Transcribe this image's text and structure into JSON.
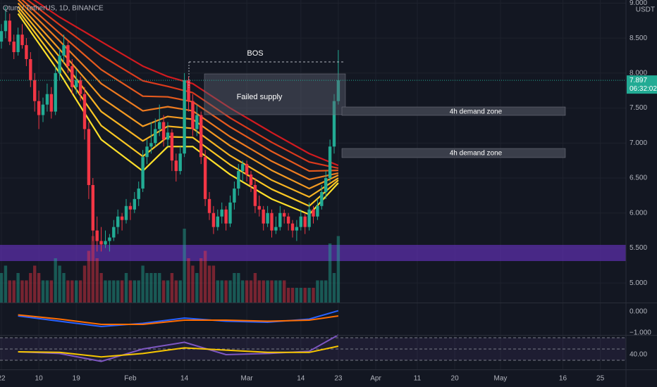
{
  "header": {
    "symbol": "Qtum / TetherUS, 1D, BINANCE",
    "currency": "USDT"
  },
  "annotations": {
    "bos": "BOS",
    "failed_supply": "Failed supply",
    "demand_zone_1": "4h demand zone",
    "demand_zone_2": "4h demand zone"
  },
  "chart_data": [
    {
      "type": "candlestick",
      "up_color": "#22ab94",
      "down_color": "#f23645",
      "xlim": [
        -0.34,
        150.17
      ],
      "xticks": [
        {
          "value": 0,
          "label": "22"
        },
        {
          "value": 9,
          "label": "10"
        },
        {
          "value": 18,
          "label": "19"
        },
        {
          "value": 31,
          "label": "Feb"
        },
        {
          "value": 44,
          "label": "14"
        },
        {
          "value": 59,
          "label": "Mar"
        },
        {
          "value": 72,
          "label": "14"
        },
        {
          "value": 81,
          "label": "23"
        },
        {
          "value": 90,
          "label": "Apr"
        },
        {
          "value": 100,
          "label": "11"
        },
        {
          "value": 109,
          "label": "20"
        },
        {
          "value": 120,
          "label": "May"
        },
        {
          "value": 135,
          "label": "16"
        },
        {
          "value": 144,
          "label": "25"
        }
      ],
      "ylim": [
        4.72,
        9.045
      ],
      "yticks": [
        {
          "value": 9,
          "label": "9.000"
        },
        {
          "value": 8.5,
          "label": "8.500"
        },
        {
          "value": 8,
          "label": "8.000"
        },
        {
          "value": 7.5,
          "label": "7.500"
        },
        {
          "value": 7,
          "label": "7.000"
        },
        {
          "value": 6.5,
          "label": "6.500"
        },
        {
          "value": 6,
          "label": "6.000"
        },
        {
          "value": 5.5,
          "label": "5.500"
        },
        {
          "value": 5,
          "label": "5.000"
        }
      ],
      "grid": true,
      "open": [
        8.45,
        8.6,
        8.75,
        8.45,
        8.3,
        8.55,
        8.4,
        8.2,
        7.9,
        7.6,
        7.4,
        7.55,
        7.7,
        7.45,
        8.0,
        8.25,
        8.4,
        8.1,
        7.8,
        7.9,
        7.7,
        7.2,
        6.4,
        5.75,
        5.6,
        5.55,
        5.6,
        5.65,
        5.8,
        5.95,
        5.9,
        6.1,
        6.05,
        6.2,
        6.35,
        6.8,
        6.95,
        7.0,
        7.2,
        7.3,
        7.05,
        7.15,
        6.75,
        6.6,
        6.85,
        7.9,
        7.6,
        7.2,
        7.4,
        6.8,
        6.2,
        6.0,
        5.8,
        5.95,
        6.05,
        5.85,
        6.15,
        6.35,
        6.6,
        6.7,
        6.55,
        6.4,
        6.1,
        6.05,
        5.85,
        6.0,
        5.75,
        5.8,
        6.0,
        5.95,
        5.85,
        5.75,
        5.8,
        5.95,
        5.8,
        6.05,
        5.95,
        6.1,
        6.3,
        6.5,
        6.95,
        7.6
      ],
      "high": [
        8.7,
        8.95,
        8.85,
        8.55,
        8.65,
        8.7,
        8.5,
        8.3,
        8.0,
        7.75,
        7.65,
        7.85,
        7.8,
        8.1,
        8.35,
        8.55,
        8.45,
        8.2,
        8.05,
        7.95,
        7.8,
        7.3,
        6.5,
        5.95,
        5.8,
        5.75,
        5.7,
        5.9,
        6.05,
        6.0,
        6.2,
        6.15,
        6.3,
        6.45,
        6.9,
        7.05,
        7.3,
        7.35,
        7.55,
        7.4,
        7.3,
        7.2,
        6.85,
        6.95,
        8.0,
        7.95,
        7.7,
        7.55,
        7.45,
        6.9,
        6.3,
        6.1,
        6.05,
        6.15,
        6.1,
        6.25,
        6.45,
        6.7,
        6.75,
        6.75,
        6.6,
        6.5,
        6.25,
        6.1,
        6.1,
        6.05,
        5.95,
        6.1,
        6.05,
        6.0,
        5.9,
        5.9,
        6.05,
        6.0,
        6.15,
        6.1,
        6.2,
        6.4,
        6.6,
        7.05,
        7.7,
        8.33
      ],
      "low": [
        8.35,
        8.5,
        8.4,
        8.2,
        8.25,
        8.35,
        8.1,
        7.8,
        7.45,
        7.2,
        7.3,
        7.45,
        7.35,
        7.4,
        7.9,
        8.15,
        8.0,
        7.7,
        7.7,
        7.6,
        7.05,
        6.2,
        5.6,
        5.45,
        5.45,
        5.5,
        5.45,
        5.6,
        5.7,
        5.75,
        5.85,
        5.9,
        6.0,
        6.1,
        6.3,
        6.7,
        6.85,
        6.95,
        7.1,
        6.95,
        6.95,
        6.6,
        6.45,
        6.55,
        6.8,
        7.45,
        7.1,
        7.1,
        6.7,
        6.1,
        5.9,
        5.7,
        5.75,
        5.85,
        5.75,
        5.8,
        6.05,
        6.25,
        6.45,
        6.45,
        6.3,
        6.0,
        5.95,
        5.75,
        5.8,
        5.65,
        5.7,
        5.75,
        5.85,
        5.75,
        5.65,
        5.6,
        5.75,
        5.7,
        5.75,
        5.85,
        5.9,
        6.05,
        6.2,
        6.45,
        6.85,
        7.55
      ],
      "close": [
        8.6,
        8.75,
        8.45,
        8.3,
        8.55,
        8.4,
        8.2,
        7.9,
        7.6,
        7.4,
        7.55,
        7.7,
        7.45,
        8.0,
        8.25,
        8.4,
        8.1,
        7.8,
        7.9,
        7.7,
        7.2,
        6.4,
        5.75,
        5.6,
        5.55,
        5.6,
        5.65,
        5.8,
        5.95,
        5.9,
        6.1,
        6.05,
        6.2,
        6.35,
        6.8,
        6.95,
        7.0,
        7.2,
        7.3,
        7.05,
        7.15,
        6.75,
        6.6,
        6.85,
        7.9,
        7.6,
        7.2,
        7.4,
        6.8,
        6.2,
        6.0,
        5.8,
        5.95,
        6.05,
        5.85,
        6.15,
        6.35,
        6.6,
        6.7,
        6.55,
        6.4,
        6.1,
        6.05,
        5.85,
        6.0,
        5.75,
        5.8,
        6.0,
        5.95,
        5.85,
        5.75,
        5.8,
        5.95,
        5.8,
        6.05,
        5.95,
        6.1,
        6.3,
        6.5,
        6.95,
        7.6,
        7.897
      ],
      "volume": [
        4,
        5,
        3,
        3,
        4,
        3,
        3,
        4,
        5,
        4,
        3,
        3,
        3,
        6,
        5,
        4,
        3,
        3,
        3,
        3,
        5,
        7,
        9,
        6,
        4,
        3,
        3,
        3,
        3,
        3,
        4,
        3,
        3,
        3,
        5,
        4,
        4,
        4,
        4,
        3,
        3,
        4,
        3,
        3,
        10,
        6,
        5,
        4,
        6,
        7,
        5,
        5,
        3,
        3,
        3,
        3,
        4,
        4,
        3,
        3,
        3,
        4,
        3,
        3,
        3,
        3,
        3,
        3,
        3,
        2,
        2,
        2,
        2,
        2,
        2,
        2,
        3,
        3,
        3,
        8,
        4,
        9
      ],
      "ribbon": {
        "x": [
          4,
          14,
          24,
          34,
          40,
          46,
          55,
          65,
          74,
          81
        ],
        "series": [
          {
            "color": "#d11a1f",
            "values": [
              9.2,
              8.8,
              8.45,
              8.1,
              7.95,
              7.85,
              7.5,
              7.15,
              6.85,
              6.68
            ]
          },
          {
            "color": "#dc3a1c",
            "values": [
              9.15,
              8.69,
              8.25,
              7.89,
              7.81,
              7.72,
              7.36,
              7.01,
              6.73,
              6.64
            ]
          },
          {
            "color": "#e55a1e",
            "values": [
              9.1,
              8.57,
              8.05,
              7.67,
              7.66,
              7.59,
              7.23,
              6.88,
              6.6,
              6.61
            ]
          },
          {
            "color": "#ed7a20",
            "values": [
              9.05,
              8.46,
              7.85,
              7.46,
              7.52,
              7.46,
              7.09,
              6.74,
              6.48,
              6.57
            ]
          },
          {
            "color": "#f39a22",
            "values": [
              9.0,
              8.34,
              7.65,
              7.24,
              7.38,
              7.34,
              6.96,
              6.61,
              6.35,
              6.54
            ]
          },
          {
            "color": "#f7b423",
            "values": [
              8.95,
              8.23,
              7.45,
              7.03,
              7.24,
              7.21,
              6.82,
              6.47,
              6.23,
              6.5
            ]
          },
          {
            "color": "#fbc824",
            "values": [
              8.9,
              8.11,
              7.25,
              6.81,
              7.09,
              7.08,
              6.69,
              6.34,
              6.1,
              6.47
            ]
          },
          {
            "color": "#ffe02a",
            "values": [
              8.85,
              8.0,
              7.05,
              6.6,
              6.95,
              6.95,
              6.55,
              6.2,
              5.98,
              6.43
            ]
          }
        ]
      },
      "last_price": 7.897,
      "countdown": "06:32:02"
    },
    {
      "type": "line",
      "x": [
        4,
        14,
        24,
        34,
        44,
        54,
        64,
        74,
        81
      ],
      "ylim": [
        -1.07,
        0.37
      ],
      "yticks": [
        {
          "value": 0,
          "label": "0.000"
        },
        {
          "value": -1,
          "label": "−1.000"
        }
      ],
      "series": [
        {
          "color": "#2962ff",
          "values": [
            -0.2,
            -0.45,
            -0.7,
            -0.55,
            -0.3,
            -0.45,
            -0.5,
            -0.35,
            0.05
          ]
        },
        {
          "color": "#ff6d00",
          "values": [
            -0.15,
            -0.35,
            -0.6,
            -0.6,
            -0.4,
            -0.4,
            -0.45,
            -0.4,
            -0.2
          ]
        }
      ]
    },
    {
      "type": "line",
      "x": [
        4,
        14,
        24,
        34,
        44,
        54,
        64,
        74,
        81
      ],
      "ylim": [
        17.5,
        72.5
      ],
      "yticks": [
        {
          "value": 40,
          "label": "40.00"
        }
      ],
      "bands": [
        70,
        50,
        30
      ],
      "series": [
        {
          "color": "#7e57c2",
          "values": [
            45,
            42,
            28,
            50,
            62,
            40,
            42,
            46,
            75
          ]
        },
        {
          "color": "#f7c600",
          "values": [
            45,
            44,
            36,
            42,
            52,
            48,
            44,
            44,
            55
          ]
        }
      ]
    }
  ]
}
